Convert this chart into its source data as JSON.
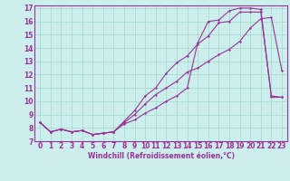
{
  "xlabel": "Windchill (Refroidissement éolien,°C)",
  "bg_color": "#cceeed",
  "line_color": "#993399",
  "grid_color": "#aaddcc",
  "xlim": [
    -0.5,
    23.5
  ],
  "ylim": [
    7,
    17.2
  ],
  "yticks": [
    7,
    8,
    9,
    10,
    11,
    12,
    13,
    14,
    15,
    16,
    17
  ],
  "xticks": [
    0,
    1,
    2,
    3,
    4,
    5,
    6,
    7,
    8,
    9,
    10,
    11,
    12,
    13,
    14,
    15,
    16,
    17,
    18,
    19,
    20,
    21,
    22,
    23
  ],
  "line1_x": [
    0,
    1,
    2,
    3,
    4,
    5,
    6,
    7,
    8,
    9,
    10,
    11,
    12,
    13,
    14,
    15,
    16,
    17,
    18,
    19,
    20,
    21,
    22,
    23
  ],
  "line1_y": [
    8.4,
    7.7,
    7.9,
    7.7,
    7.8,
    7.5,
    7.6,
    7.7,
    8.3,
    8.6,
    9.1,
    9.5,
    10.0,
    10.4,
    11.0,
    14.4,
    16.0,
    16.1,
    16.8,
    17.0,
    17.0,
    16.9,
    10.4,
    10.3
  ],
  "line2_x": [
    0,
    1,
    2,
    3,
    4,
    5,
    6,
    7,
    8,
    9,
    10,
    11,
    12,
    13,
    14,
    15,
    16,
    17,
    18,
    19,
    20,
    21,
    22,
    23
  ],
  "line2_y": [
    8.4,
    7.7,
    7.9,
    7.7,
    7.8,
    7.5,
    7.6,
    7.7,
    8.5,
    9.3,
    10.4,
    11.0,
    12.1,
    12.9,
    13.4,
    14.3,
    14.9,
    15.9,
    16.0,
    16.7,
    16.7,
    16.7,
    10.3,
    10.3
  ],
  "line3_x": [
    0,
    1,
    2,
    3,
    4,
    5,
    6,
    7,
    8,
    9,
    10,
    11,
    12,
    13,
    14,
    15,
    16,
    17,
    18,
    19,
    20,
    21,
    22,
    23
  ],
  "line3_y": [
    8.4,
    7.7,
    7.9,
    7.7,
    7.8,
    7.5,
    7.6,
    7.7,
    8.4,
    9.0,
    9.8,
    10.5,
    11.0,
    11.5,
    12.2,
    12.5,
    13.0,
    13.5,
    13.9,
    14.5,
    15.5,
    16.2,
    16.3,
    12.3
  ],
  "tick_fontsize": 5.5,
  "xlabel_fontsize": 5.5,
  "marker_size": 2.0,
  "line_width": 0.8
}
